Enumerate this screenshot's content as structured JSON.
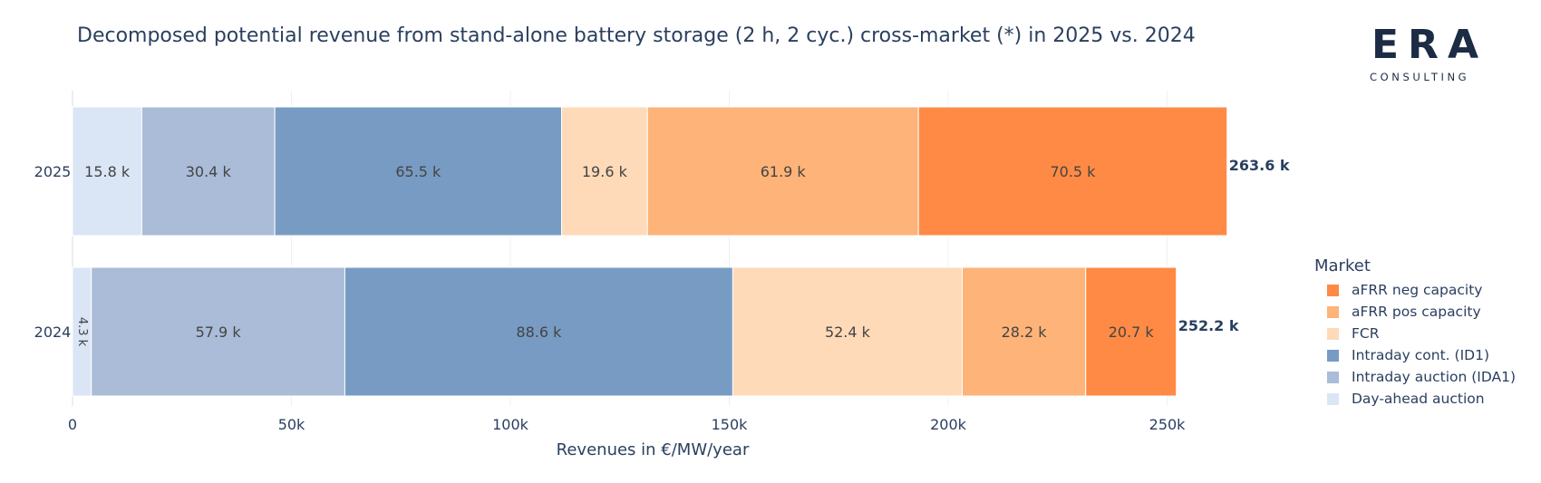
{
  "chart_data": {
    "type": "bar",
    "orientation": "horizontal",
    "stacked": true,
    "title": "Decomposed potential revenue from stand-alone battery storage (2 h, 2 cyc.) cross-market (*) in 2025 vs. 2024",
    "xlabel": "Revenues in €/MW/year",
    "ylabel": "",
    "xlim": [
      0,
      265000
    ],
    "x_ticks": [
      {
        "value": 0,
        "label": "0"
      },
      {
        "value": 50000,
        "label": "50k"
      },
      {
        "value": 100000,
        "label": "100k"
      },
      {
        "value": 150000,
        "label": "150k"
      },
      {
        "value": 200000,
        "label": "200k"
      },
      {
        "value": 250000,
        "label": "250k"
      }
    ],
    "categories": [
      "2025",
      "2024"
    ],
    "series": [
      {
        "name": "Day-ahead auction",
        "color": "#dae5f6",
        "values": [
          15800,
          4300
        ],
        "labels": [
          "15.8 k",
          "4.3 k"
        ]
      },
      {
        "name": "Intraday auction (IDA1)",
        "color": "#aabcd8",
        "values": [
          30400,
          57900
        ],
        "labels": [
          "30.4 k",
          "57.9 k"
        ]
      },
      {
        "name": "Intraday cont. (ID1)",
        "color": "#789bc3",
        "values": [
          65500,
          88600
        ],
        "labels": [
          "65.5 k",
          "88.6 k"
        ]
      },
      {
        "name": "FCR",
        "color": "#fedab9",
        "values": [
          19600,
          52400
        ],
        "labels": [
          "19.6 k",
          "52.4 k"
        ]
      },
      {
        "name": "aFRR pos capacity",
        "color": "#feb378",
        "values": [
          61900,
          28200
        ],
        "labels": [
          "61.9 k",
          "28.2 k"
        ]
      },
      {
        "name": "aFRR neg capacity",
        "color": "#fe8a45",
        "values": [
          70500,
          20700
        ],
        "labels": [
          "70.5 k",
          "20.7 k"
        ]
      }
    ],
    "totals": [
      "263.6 k",
      "252.2 k"
    ],
    "legend": {
      "title": "Market",
      "position": "right",
      "items": [
        "aFRR neg capacity",
        "aFRR pos capacity",
        "FCR",
        "Intraday cont. (ID1)",
        "Intraday auction (IDA1)",
        "Day-ahead auction"
      ]
    }
  },
  "logo": {
    "main": "ERA",
    "sub": "CONSULTING"
  }
}
